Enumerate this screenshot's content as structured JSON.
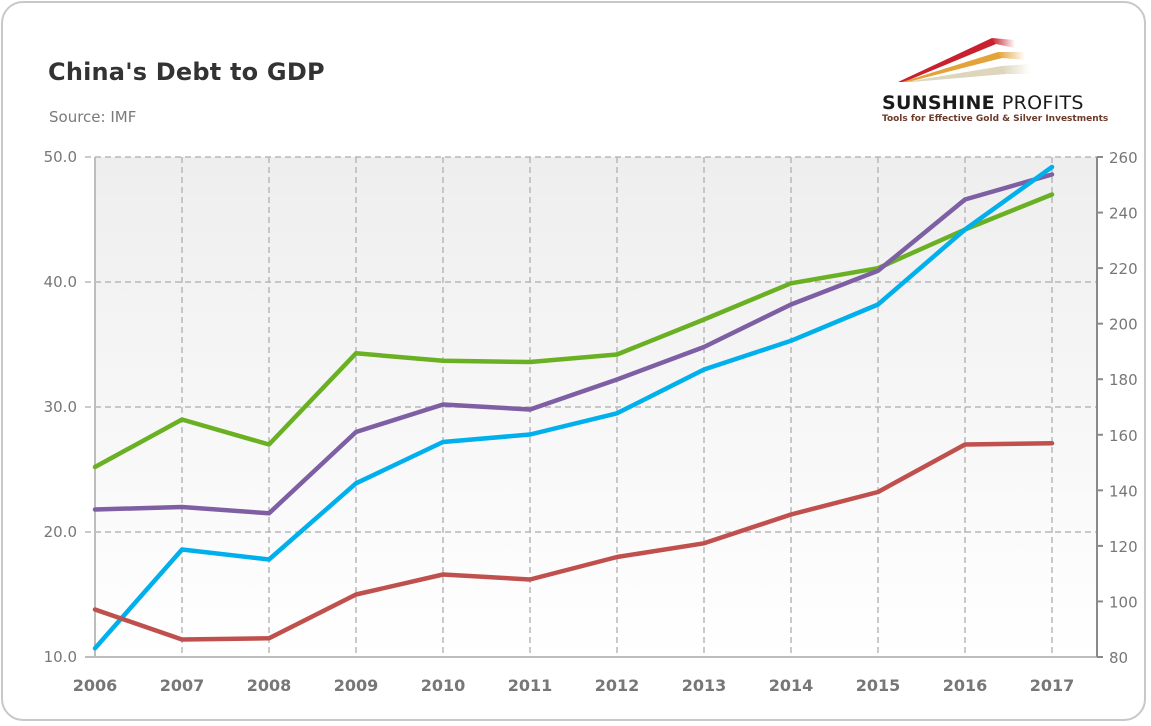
{
  "header": {
    "title": "China's Debt to GDP",
    "subtitle": "Source: IMF"
  },
  "logo": {
    "name_bold": "SUNSHINE",
    "name_light": "PROFITS",
    "tagline": "Tools for Effective Gold & Silver Investments",
    "stripe_colors": [
      "#c8202e",
      "#e3a33a",
      "#e8e2cf"
    ]
  },
  "chart_data": {
    "type": "line",
    "title": "China's Debt to GDP",
    "subtitle": "Source: IMF",
    "xlabel": "",
    "ylabel": "",
    "x": [
      "2006",
      "2007",
      "2008",
      "2009",
      "2010",
      "2011",
      "2012",
      "2013",
      "2014",
      "2015",
      "2016",
      "2017"
    ],
    "y_left": {
      "lim": [
        10,
        50
      ],
      "ticks": [
        "10.0",
        "20.0",
        "30.0",
        "40.0",
        "50.0"
      ]
    },
    "y_right": {
      "lim": [
        80,
        260
      ],
      "ticks": [
        "80",
        "100",
        "120",
        "140",
        "160",
        "180",
        "200",
        "220",
        "240",
        "260"
      ]
    },
    "grid": true,
    "legend": "none",
    "series": [
      {
        "name": "green-series",
        "color": "#6ab023",
        "axis": "left",
        "values": [
          25.2,
          29.0,
          27.0,
          34.3,
          33.7,
          33.6,
          34.2,
          37.0,
          39.9,
          41.1,
          44.2,
          47.0
        ]
      },
      {
        "name": "purple-series",
        "color": "#7e5fa3",
        "axis": "left",
        "values": [
          21.8,
          22.0,
          21.5,
          28.0,
          30.2,
          29.8,
          32.2,
          34.8,
          38.2,
          40.9,
          46.6,
          48.6
        ]
      },
      {
        "name": "cyan-series",
        "color": "#00b0ec",
        "axis": "left",
        "values": [
          10.7,
          18.6,
          17.8,
          23.9,
          27.2,
          27.8,
          29.5,
          33.0,
          35.3,
          38.2,
          44.2,
          49.2
        ]
      },
      {
        "name": "red-series",
        "color": "#c0504d",
        "axis": "left",
        "values": [
          13.8,
          11.4,
          11.5,
          15.0,
          16.6,
          16.2,
          18.0,
          19.1,
          21.4,
          23.2,
          27.0,
          27.1
        ]
      }
    ]
  }
}
